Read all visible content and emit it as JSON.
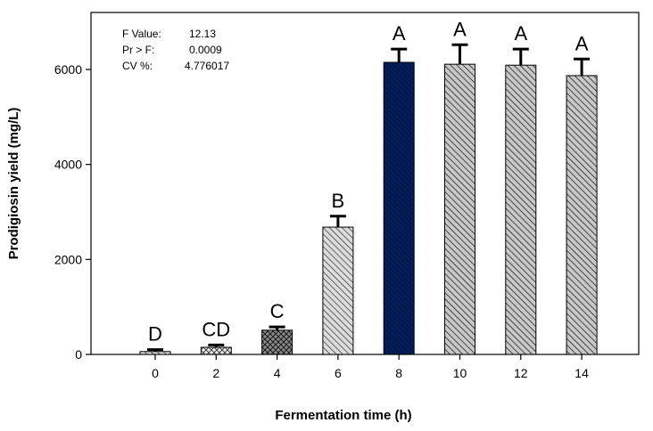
{
  "chart_data": {
    "type": "bar",
    "title": "",
    "xlabel": "Fermentation time (h)",
    "ylabel": "Prodigiosin yield (mg/L)",
    "ylim": [
      0,
      7200
    ],
    "yticks": [
      0,
      2000,
      4000,
      6000
    ],
    "categories": [
      "0",
      "2",
      "4",
      "6",
      "8",
      "10",
      "12",
      "14"
    ],
    "values": [
      60,
      150,
      510,
      2680,
      6150,
      6110,
      6090,
      5870
    ],
    "errors": [
      40,
      50,
      70,
      230,
      280,
      410,
      340,
      350
    ],
    "significance_letters": [
      "D",
      "CD",
      "C",
      "B",
      "A",
      "A",
      "A",
      "A"
    ],
    "stats": {
      "f_label": "F Value:",
      "f_value": "12.13",
      "p_label": "Pr > F:",
      "p_value": "0.0009",
      "cv_label": "CV %:",
      "cv_value": "4.776017"
    }
  },
  "colors": {
    "bar_light": "#d9d9d9",
    "bar_hatch": "#000000",
    "bar_mid": "#8c8c8c",
    "bar_highlight": "#001f5c"
  }
}
